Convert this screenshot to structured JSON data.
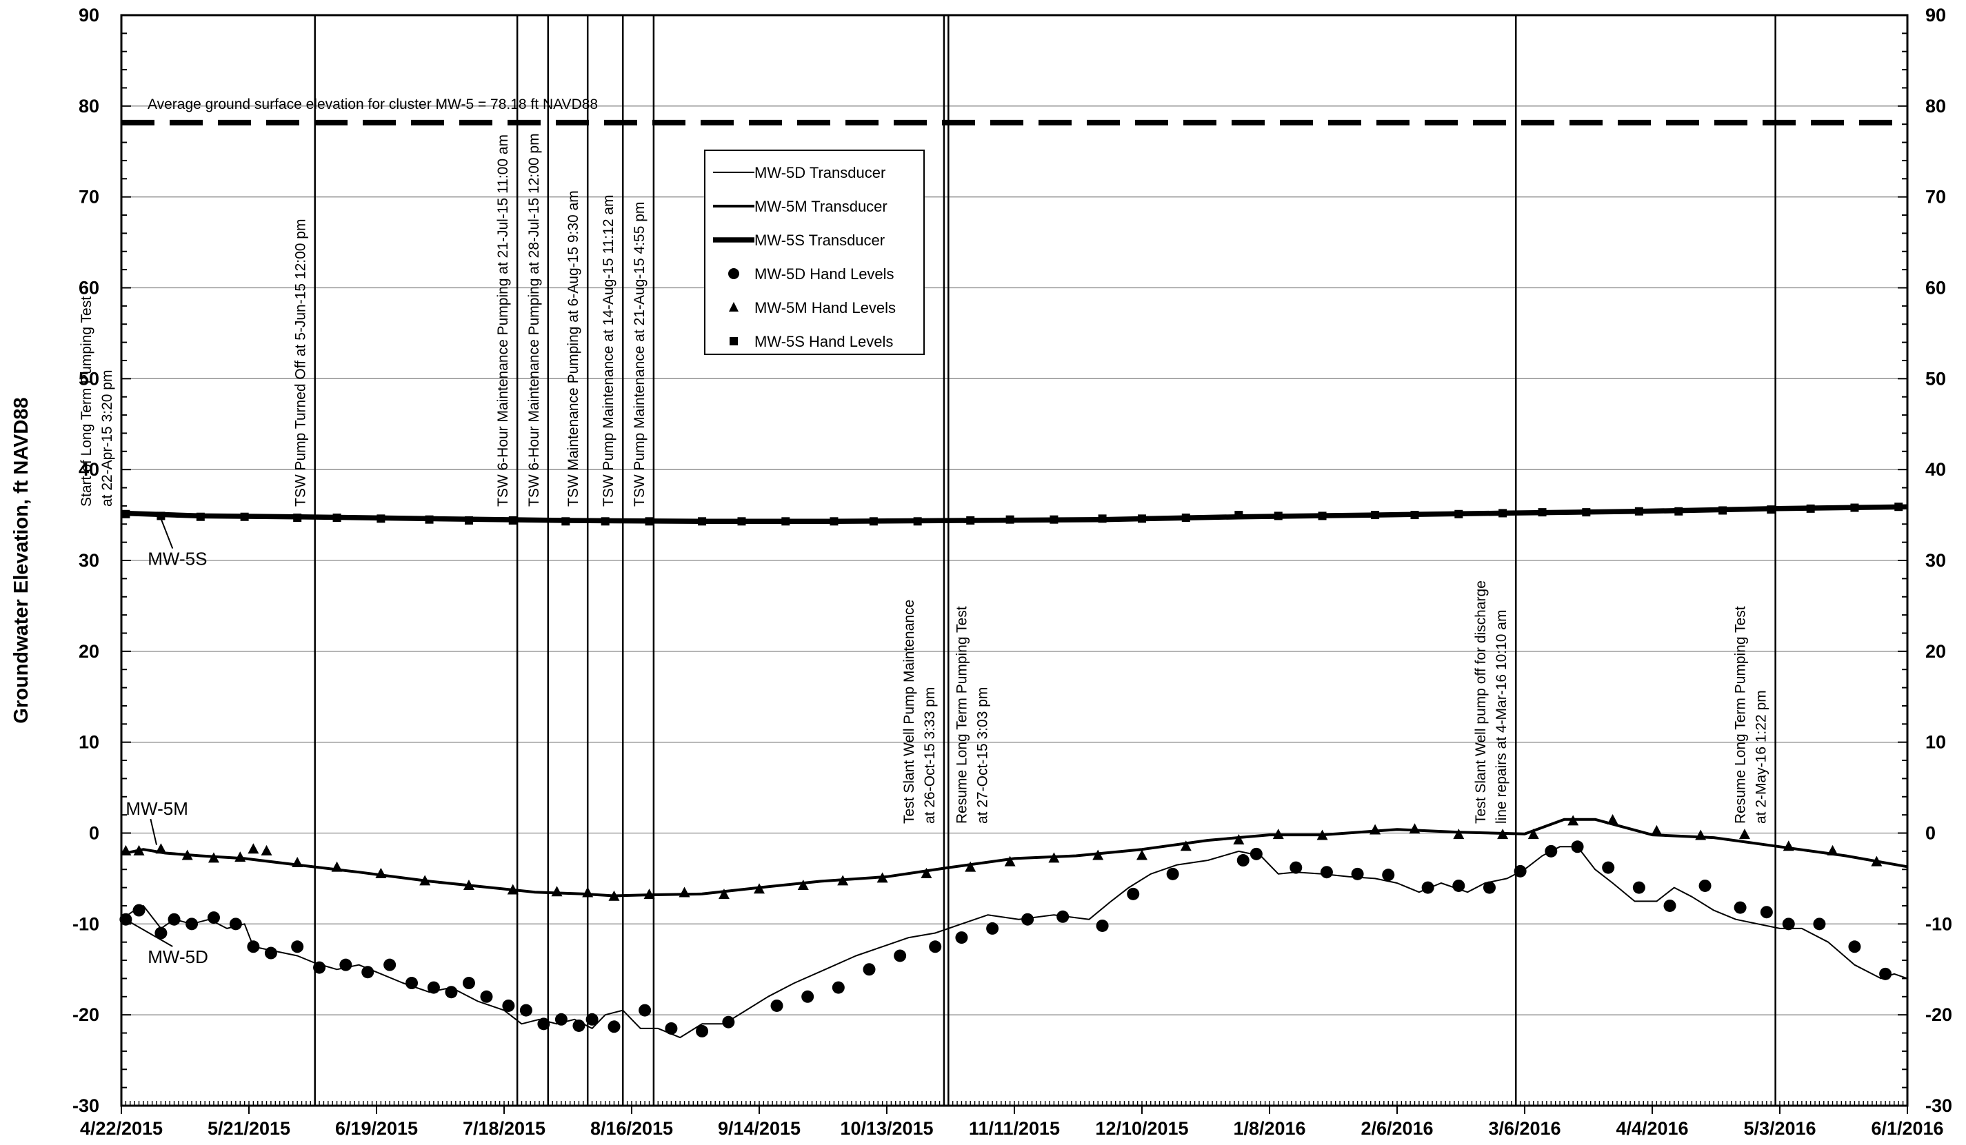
{
  "chart_data": {
    "type": "line",
    "title": "",
    "xlabel": "",
    "ylabel": "Groundwater Elevation, ft NAVD88",
    "ylim": [
      -30,
      90
    ],
    "y_ticks": [
      -30,
      -20,
      -10,
      0,
      10,
      20,
      30,
      40,
      50,
      60,
      70,
      80,
      90
    ],
    "y_tick_labels": [
      "-30",
      "-20",
      "-10",
      "0",
      "10",
      "20",
      "30",
      "40",
      "50",
      "60",
      "70",
      "80",
      "90"
    ],
    "xlim": [
      "2015-04-22",
      "2016-06-01"
    ],
    "x_ticks": [
      "2015-04-22",
      "2015-05-21",
      "2015-06-19",
      "2015-07-18",
      "2015-08-16",
      "2015-09-14",
      "2015-10-13",
      "2015-11-11",
      "2015-12-10",
      "2016-01-08",
      "2016-02-06",
      "2016-03-06",
      "2016-04-04",
      "2016-05-03",
      "2016-06-01"
    ],
    "x_tick_labels": [
      "4/22/2015",
      "5/21/2015",
      "6/19/2015",
      "7/18/2015",
      "8/16/2015",
      "9/14/2015",
      "10/13/2015",
      "11/11/2015",
      "12/10/2015",
      "1/8/2016",
      "2/6/2016",
      "3/6/2016",
      "4/4/2016",
      "5/3/2016",
      "6/1/2016"
    ],
    "grid": "horizontal",
    "legend_position": "top-center",
    "ground_surface": {
      "value": 78.18,
      "label": "Average ground surface elevation for cluster MW-5 = 78.18 ft NAVD88"
    },
    "series": [
      {
        "name": "MW-5D Transducer",
        "style": "thin-line",
        "x": [
          "2015-04-22",
          "2015-04-25",
          "2015-04-27",
          "2015-05-01",
          "2015-05-04",
          "2015-05-08",
          "2015-05-12",
          "2015-05-16",
          "2015-05-20",
          "2015-05-22",
          "2015-05-27",
          "2015-06-01",
          "2015-06-05",
          "2015-06-10",
          "2015-06-15",
          "2015-06-20",
          "2015-06-25",
          "2015-07-01",
          "2015-07-06",
          "2015-07-12",
          "2015-07-18",
          "2015-07-22",
          "2015-07-26",
          "2015-07-30",
          "2015-08-03",
          "2015-08-07",
          "2015-08-10",
          "2015-08-14",
          "2015-08-18",
          "2015-08-22",
          "2015-08-27",
          "2015-09-01",
          "2015-09-06",
          "2015-09-11",
          "2015-09-16",
          "2015-09-22",
          "2015-09-29",
          "2015-10-06",
          "2015-10-12",
          "2015-10-18",
          "2015-10-24",
          "2015-10-30",
          "2015-11-05",
          "2015-11-12",
          "2015-11-20",
          "2015-11-28",
          "2015-12-03",
          "2015-12-07",
          "2015-12-12",
          "2015-12-18",
          "2015-12-25",
          "2016-01-01",
          "2016-01-06",
          "2016-01-10",
          "2016-01-14",
          "2016-01-20",
          "2016-01-26",
          "2016-02-01",
          "2016-02-06",
          "2016-02-11",
          "2016-02-16",
          "2016-02-22",
          "2016-02-26",
          "2016-03-02",
          "2016-03-06",
          "2016-03-10",
          "2016-03-14",
          "2016-03-18",
          "2016-03-22",
          "2016-03-26",
          "2016-03-31",
          "2016-04-05",
          "2016-04-09",
          "2016-04-13",
          "2016-04-18",
          "2016-04-23",
          "2016-04-28",
          "2016-05-03",
          "2016-05-08",
          "2016-05-14",
          "2016-05-20",
          "2016-05-26",
          "2016-05-29",
          "2016-06-01"
        ],
        "values": [
          -9.5,
          -8.5,
          -8,
          -10.5,
          -9.5,
          -10,
          -9.5,
          -10.5,
          -10,
          -12.5,
          -13,
          -13.5,
          -14.3,
          -15,
          -14.5,
          -15.5,
          -16.5,
          -17.5,
          -17,
          -18.5,
          -19.5,
          -21,
          -20.5,
          -21,
          -20.5,
          -21.5,
          -20,
          -19.5,
          -21.5,
          -21.5,
          -22.5,
          -21,
          -21,
          -19.5,
          -18,
          -16.5,
          -15,
          -13.5,
          -12.5,
          -11.5,
          -11,
          -10,
          -9,
          -9.5,
          -9,
          -9.5,
          -7.5,
          -6,
          -4.5,
          -3.5,
          -3,
          -2,
          -2.5,
          -4.5,
          -4.3,
          -4.5,
          -4.8,
          -5,
          -5.5,
          -6.5,
          -5.5,
          -6.5,
          -5.5,
          -5,
          -4,
          -2.5,
          -1.5,
          -1.5,
          -4,
          -5.5,
          -7.5,
          -7.5,
          -6,
          -7,
          -8.5,
          -9.5,
          -10,
          -10.5,
          -10.5,
          -12,
          -14.5,
          -16,
          -15.5,
          -16
        ]
      },
      {
        "name": "MW-5M Transducer",
        "style": "medium-line",
        "x": [
          "2015-04-22",
          "2015-04-27",
          "2015-05-02",
          "2015-05-10",
          "2015-05-20",
          "2015-06-01",
          "2015-06-15",
          "2015-07-01",
          "2015-07-15",
          "2015-07-25",
          "2015-08-05",
          "2015-08-12",
          "2015-08-20",
          "2015-09-01",
          "2015-09-14",
          "2015-09-28",
          "2015-10-13",
          "2015-10-27",
          "2015-11-11",
          "2015-11-25",
          "2015-12-10",
          "2015-12-25",
          "2016-01-08",
          "2016-01-20",
          "2016-02-06",
          "2016-02-20",
          "2016-03-06",
          "2016-03-15",
          "2016-03-22",
          "2016-04-04",
          "2016-04-18",
          "2016-05-03",
          "2016-05-18",
          "2016-06-01"
        ],
        "values": [
          -2.3,
          -1.8,
          -2.2,
          -2.5,
          -2.8,
          -3.5,
          -4.3,
          -5.3,
          -6,
          -6.5,
          -6.7,
          -6.9,
          -6.8,
          -6.7,
          -6,
          -5.3,
          -4.8,
          -3.8,
          -2.8,
          -2.5,
          -1.8,
          -0.8,
          -0.2,
          -0.2,
          0.4,
          0.1,
          -0.1,
          1.5,
          1.5,
          -0.2,
          -0.5,
          -1.5,
          -2.5,
          -3.7
        ]
      },
      {
        "name": "MW-5S Transducer",
        "style": "thick-line",
        "x": [
          "2015-04-22",
          "2015-05-10",
          "2015-06-01",
          "2015-07-01",
          "2015-08-01",
          "2015-09-01",
          "2015-10-01",
          "2015-11-01",
          "2015-12-01",
          "2016-01-01",
          "2016-02-01",
          "2016-03-01",
          "2016-04-01",
          "2016-05-01",
          "2016-06-01"
        ],
        "values": [
          35.2,
          34.9,
          34.8,
          34.6,
          34.4,
          34.3,
          34.3,
          34.4,
          34.5,
          34.8,
          35,
          35.2,
          35.4,
          35.7,
          35.9
        ]
      },
      {
        "name": "MW-5D Hand Levels",
        "style": "circle-markers",
        "x": [
          "2015-04-23",
          "2015-04-26",
          "2015-05-01",
          "2015-05-04",
          "2015-05-08",
          "2015-05-13",
          "2015-05-18",
          "2015-05-22",
          "2015-05-26",
          "2015-06-01",
          "2015-06-06",
          "2015-06-12",
          "2015-06-17",
          "2015-06-22",
          "2015-06-27",
          "2015-07-02",
          "2015-07-06",
          "2015-07-10",
          "2015-07-14",
          "2015-07-19",
          "2015-07-23",
          "2015-07-27",
          "2015-07-31",
          "2015-08-04",
          "2015-08-07",
          "2015-08-12",
          "2015-08-19",
          "2015-08-25",
          "2015-09-01",
          "2015-09-07",
          "2015-09-18",
          "2015-09-25",
          "2015-10-02",
          "2015-10-09",
          "2015-10-16",
          "2015-10-24",
          "2015-10-30",
          "2015-11-06",
          "2015-11-14",
          "2015-11-22",
          "2015-12-01",
          "2015-12-08",
          "2015-12-17",
          "2016-01-02",
          "2016-01-05",
          "2016-01-14",
          "2016-01-21",
          "2016-01-28",
          "2016-02-04",
          "2016-02-13",
          "2016-02-20",
          "2016-02-27",
          "2016-03-05",
          "2016-03-12",
          "2016-03-18",
          "2016-03-25",
          "2016-04-01",
          "2016-04-08",
          "2016-04-16",
          "2016-04-24",
          "2016-04-30",
          "2016-05-05",
          "2016-05-12",
          "2016-05-20",
          "2016-05-27"
        ],
        "values": [
          -9.5,
          -8.5,
          -11,
          -9.5,
          -10,
          -9.3,
          -10,
          -12.5,
          -13.2,
          -12.5,
          -14.8,
          -14.5,
          -15.3,
          -14.5,
          -16.5,
          -17,
          -17.5,
          -16.5,
          -18,
          -19,
          -19.5,
          -21,
          -20.5,
          -21.2,
          -20.5,
          -21.3,
          -19.5,
          -21.5,
          -21.8,
          -20.8,
          -19,
          -18,
          -17,
          -15,
          -13.5,
          -12.5,
          -11.5,
          -10.5,
          -9.5,
          -9.2,
          -10.2,
          -6.7,
          -4.5,
          -3,
          -2.3,
          -3.8,
          -4.3,
          -4.5,
          -4.6,
          -6,
          -5.8,
          -6,
          -4.2,
          -2,
          -1.5,
          -3.8,
          -6,
          -8,
          -5.8,
          -8.2,
          -8.7,
          -10,
          -10,
          -12.5,
          -15.5
        ]
      },
      {
        "name": "MW-5M Hand Levels",
        "style": "triangle-markers",
        "x": [
          "2015-04-23",
          "2015-04-26",
          "2015-05-01",
          "2015-05-07",
          "2015-05-13",
          "2015-05-19",
          "2015-05-22",
          "2015-05-25",
          "2015-06-01",
          "2015-06-10",
          "2015-06-20",
          "2015-06-30",
          "2015-07-10",
          "2015-07-20",
          "2015-07-30",
          "2015-08-06",
          "2015-08-12",
          "2015-08-20",
          "2015-08-28",
          "2015-09-06",
          "2015-09-14",
          "2015-09-24",
          "2015-10-03",
          "2015-10-12",
          "2015-10-22",
          "2015-11-01",
          "2015-11-10",
          "2015-11-20",
          "2015-11-30",
          "2015-12-10",
          "2015-12-20",
          "2016-01-01",
          "2016-01-10",
          "2016-01-20",
          "2016-02-01",
          "2016-02-10",
          "2016-02-20",
          "2016-03-01",
          "2016-03-08",
          "2016-03-17",
          "2016-03-26",
          "2016-04-05",
          "2016-04-15",
          "2016-04-25",
          "2016-05-05",
          "2016-05-15",
          "2016-05-25"
        ],
        "values": [
          -2,
          -2,
          -1.8,
          -2.5,
          -2.8,
          -2.7,
          -1.8,
          -2,
          -3.3,
          -3.8,
          -4.5,
          -5.3,
          -5.8,
          -6.3,
          -6.5,
          -6.6,
          -7,
          -6.8,
          -6.6,
          -6.8,
          -6.2,
          -5.8,
          -5.3,
          -5,
          -4.5,
          -3.8,
          -3.2,
          -2.8,
          -2.5,
          -2.5,
          -1.5,
          -0.8,
          -0.2,
          -0.3,
          0.3,
          0.4,
          -0.2,
          -0.2,
          -0.2,
          1.3,
          1.4,
          0.2,
          -0.3,
          -0.2,
          -1.5,
          -2,
          -3.2
        ]
      },
      {
        "name": "MW-5S Hand Levels",
        "style": "square-markers",
        "x": [
          "2015-04-23",
          "2015-05-01",
          "2015-05-10",
          "2015-05-20",
          "2015-06-01",
          "2015-06-10",
          "2015-06-20",
          "2015-07-01",
          "2015-07-10",
          "2015-07-20",
          "2015-08-01",
          "2015-08-10",
          "2015-08-20",
          "2015-09-01",
          "2015-09-10",
          "2015-09-20",
          "2015-10-01",
          "2015-10-10",
          "2015-10-20",
          "2015-11-01",
          "2015-11-10",
          "2015-11-20",
          "2015-12-01",
          "2015-12-10",
          "2015-12-20",
          "2016-01-01",
          "2016-01-10",
          "2016-01-20",
          "2016-02-01",
          "2016-02-10",
          "2016-02-20",
          "2016-03-01",
          "2016-03-10",
          "2016-03-20",
          "2016-04-01",
          "2016-04-10",
          "2016-04-20",
          "2016-05-01",
          "2016-05-10",
          "2016-05-20",
          "2016-05-30"
        ],
        "values": [
          35.1,
          34.9,
          34.8,
          34.8,
          34.7,
          34.7,
          34.6,
          34.5,
          34.4,
          34.4,
          34.3,
          34.3,
          34.3,
          34.3,
          34.3,
          34.3,
          34.3,
          34.3,
          34.3,
          34.4,
          34.5,
          34.5,
          34.6,
          34.6,
          34.7,
          35,
          34.9,
          34.9,
          35,
          35,
          35.1,
          35.2,
          35.3,
          35.3,
          35.4,
          35.4,
          35.5,
          35.6,
          35.7,
          35.8,
          35.9
        ]
      }
    ],
    "events": [
      {
        "date": "2015-04-22",
        "lines": [
          "Start of Long Term Pumping Test",
          "at 22-Apr-15 3:20 pm"
        ],
        "anchor": "high"
      },
      {
        "date": "2015-06-05",
        "lines": [
          "TSW Pump Turned Off at 5-Jun-15 12:00 pm"
        ],
        "anchor": "high"
      },
      {
        "date": "2015-07-21",
        "lines": [
          "TSW 6-Hour Maintenance Pumping at 21-Jul-15 11:00 am"
        ],
        "anchor": "high"
      },
      {
        "date": "2015-07-28",
        "lines": [
          "TSW 6-Hour Maintenance Pumping at 28-Jul-15 12:00 pm"
        ],
        "anchor": "high"
      },
      {
        "date": "2015-08-06",
        "lines": [
          "TSW Maintenance Pumping at 6-Aug-15 9:30 am"
        ],
        "anchor": "high"
      },
      {
        "date": "2015-08-14",
        "lines": [
          "TSW Pump Maintenance at 14-Aug-15 11:12 am"
        ],
        "anchor": "high"
      },
      {
        "date": "2015-08-21",
        "lines": [
          "TSW Pump Maintenance at 21-Aug-15 4:55 pm"
        ],
        "anchor": "high"
      },
      {
        "date": "2015-10-26",
        "lines": [
          "Test Slant Well Pump Maintenance",
          "at 26-Oct-15 3:33 pm"
        ],
        "anchor": "low",
        "side": "left"
      },
      {
        "date": "2015-10-27",
        "lines": [
          "Resume Long Term Pumping Test",
          "at 27-Oct-15 3:03 pm"
        ],
        "anchor": "low",
        "side": "right"
      },
      {
        "date": "2016-03-04",
        "lines": [
          "Test Slant Well pump off for discharge",
          "line repairs at 4-Mar-16 10:10 am"
        ],
        "anchor": "low",
        "side": "left"
      },
      {
        "date": "2016-05-02",
        "lines": [
          "Resume Long Term Pumping Test",
          "at 2-May-16 1:22 pm"
        ],
        "anchor": "low",
        "side": "left"
      }
    ],
    "well_labels": [
      {
        "text": "MW-5S",
        "x": "2015-04-28",
        "y": 29.5,
        "arrow_x": "2015-05-01",
        "arrow_y": 34.6
      },
      {
        "text": "MW-5M",
        "x": "2015-04-23",
        "y": 2.0,
        "arrow_x": "2015-04-30",
        "arrow_y": -1.3
      },
      {
        "text": "MW-5D",
        "x": "2015-04-28",
        "y": -14.3,
        "arrow_x": "2015-04-24",
        "arrow_y": -9.8
      }
    ]
  }
}
